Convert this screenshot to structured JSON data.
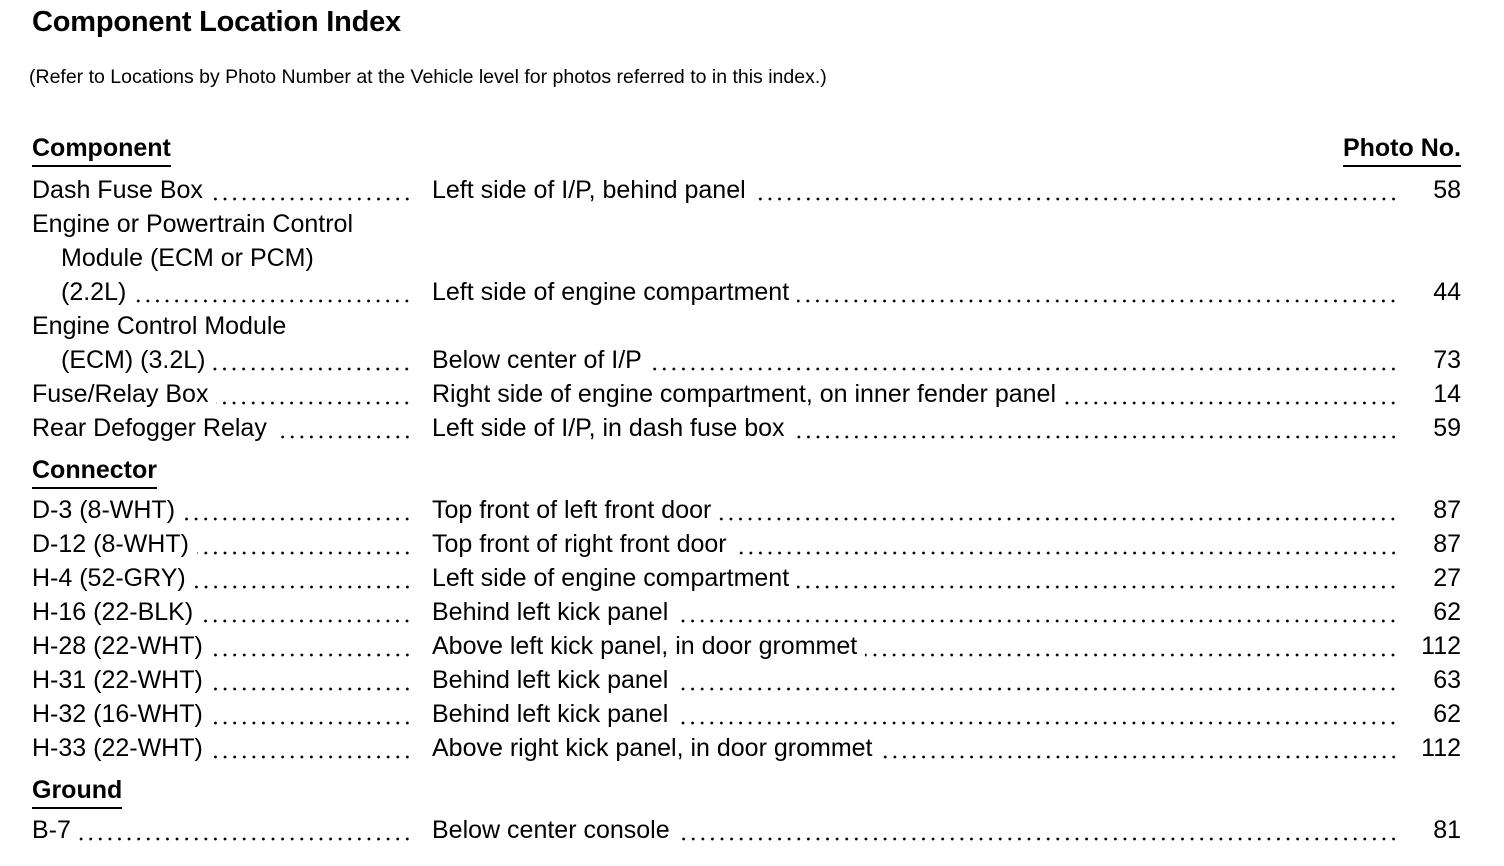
{
  "title": "Component Location Index",
  "subtitle": "(Refer to Locations by Photo Number at the Vehicle level for photos referred to in this index.)",
  "photo_header": "Photo No.",
  "sections": [
    {
      "heading": "Component",
      "rows": [
        {
          "component": [
            "Dash Fuse Box"
          ],
          "location": "Left side of I/P, behind panel",
          "photo": "58"
        },
        {
          "component": [
            "Engine or Powertrain Control",
            "Module (ECM or PCM)",
            "(2.2L)"
          ],
          "location": "Left side of engine compartment",
          "photo": "44"
        },
        {
          "component": [
            "Engine Control Module",
            "(ECM) (3.2L)"
          ],
          "location": "Below center of I/P",
          "photo": "73"
        },
        {
          "component": [
            "Fuse/Relay Box"
          ],
          "location": "Right side of engine compartment, on inner fender panel",
          "photo": "14"
        },
        {
          "component": [
            "Rear Defogger Relay"
          ],
          "location": "Left side of I/P, in dash fuse box",
          "photo": "59"
        }
      ]
    },
    {
      "heading": "Connector",
      "rows": [
        {
          "component": [
            "D-3 (8-WHT)"
          ],
          "location": "Top front of left front door",
          "photo": "87"
        },
        {
          "component": [
            "D-12 (8-WHT)"
          ],
          "location": "Top front of right front door",
          "photo": "87"
        },
        {
          "component": [
            "H-4 (52-GRY)"
          ],
          "location": "Left side of engine compartment",
          "photo": "27"
        },
        {
          "component": [
            "H-16 (22-BLK)"
          ],
          "location": "Behind left kick panel",
          "photo": "62"
        },
        {
          "component": [
            "H-28 (22-WHT)"
          ],
          "location": "Above left kick panel, in door grommet",
          "photo": "112"
        },
        {
          "component": [
            "H-31 (22-WHT)"
          ],
          "location": "Behind left kick panel",
          "photo": "63"
        },
        {
          "component": [
            "H-32 (16-WHT)"
          ],
          "location": "Behind left kick panel",
          "photo": "62"
        },
        {
          "component": [
            "H-33 (22-WHT)"
          ],
          "location": "Above right kick panel, in door grommet",
          "photo": "112"
        }
      ]
    },
    {
      "heading": "Ground",
      "rows": [
        {
          "component": [
            "B-7"
          ],
          "location": "Below center console",
          "photo": "81"
        }
      ]
    }
  ]
}
